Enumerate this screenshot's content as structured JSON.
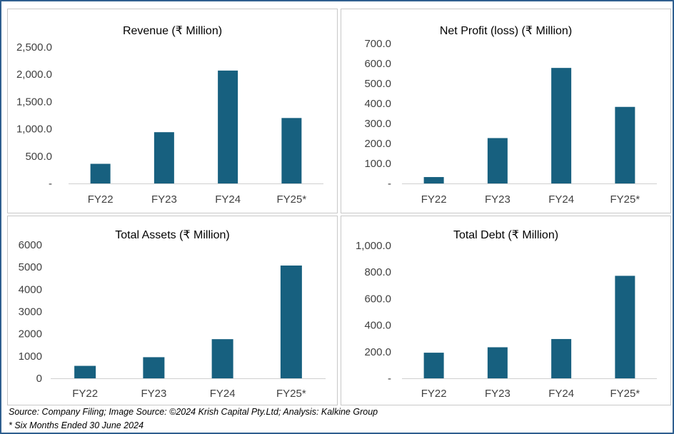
{
  "chart_data": [
    {
      "type": "bar",
      "title": "Revenue (₹ Million)",
      "categories": [
        "FY22",
        "FY23",
        "FY24",
        "FY25*"
      ],
      "values": [
        360,
        940,
        2070,
        1200
      ],
      "ylim": [
        0,
        2500
      ],
      "yticks": [
        "-",
        "500.0",
        "1,000.0",
        "1,500.0",
        "2,000.0",
        "2,500.0"
      ],
      "grid": false,
      "color": "#17607f"
    },
    {
      "type": "bar",
      "title": "Net Profit (loss) (₹ Million)",
      "categories": [
        "FY22",
        "FY23",
        "FY24",
        "FY25*"
      ],
      "values": [
        32,
        227,
        578,
        383
      ],
      "ylim": [
        0,
        700
      ],
      "yticks": [
        "-",
        "100.0",
        "200.0",
        "300.0",
        "400.0",
        "500.0",
        "600.0",
        "700.0"
      ],
      "grid": false,
      "color": "#17607f"
    },
    {
      "type": "bar",
      "title": "Total Assets (₹ Million)",
      "categories": [
        "FY22",
        "FY23",
        "FY24",
        "FY25*"
      ],
      "values": [
        560,
        950,
        1760,
        5070
      ],
      "ylim": [
        0,
        6000
      ],
      "yticks": [
        "0",
        "1000",
        "2000",
        "3000",
        "4000",
        "5000",
        "6000"
      ],
      "grid": false,
      "color": "#17607f"
    },
    {
      "type": "bar",
      "title": "Total Debt (₹ Million)",
      "categories": [
        "FY22",
        "FY23",
        "FY24",
        "FY25*"
      ],
      "values": [
        193,
        234,
        296,
        772
      ],
      "ylim": [
        0,
        1000
      ],
      "yticks": [
        "-",
        "200.0",
        "400.0",
        "600.0",
        "800.0",
        "1,000.0"
      ],
      "grid": false,
      "color": "#17607f"
    }
  ],
  "footnotes": {
    "source": "Source: Company Filing; Image Source: ©2024 Krish Capital Pty.Ltd; Analysis: Kalkine Group",
    "note": "* Six Months Ended 30 June 2024"
  }
}
